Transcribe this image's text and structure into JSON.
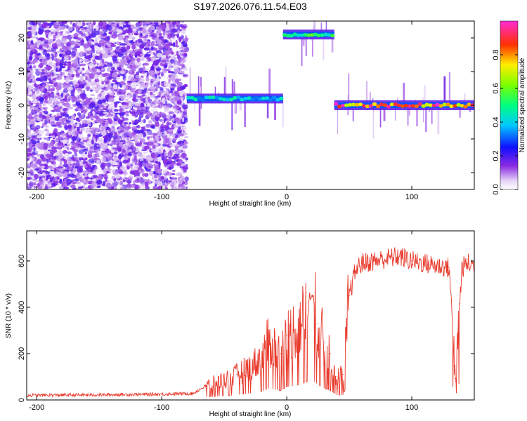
{
  "title": "S197.2026.076.11.54.E03",
  "chart_data": [
    {
      "type": "heatmap",
      "title": "S197.2026.076.11.54.E03",
      "xlabel": "Height of straight line (km)",
      "ylabel": "Frequency (Hz)",
      "xlim": [
        -208,
        150
      ],
      "ylim": [
        -25,
        25
      ],
      "xticks": [
        -200,
        -100,
        0,
        100
      ],
      "yticks": [
        -20,
        -10,
        0,
        10,
        20
      ],
      "xtick_labels": [
        "-200",
        "-100",
        "0",
        "100"
      ],
      "ytick_labels": [
        "-20",
        "-10",
        "0",
        "10",
        "20"
      ],
      "grid": false,
      "colorbar": {
        "label": "Normalized spectral amplitude",
        "range": [
          0,
          1
        ],
        "ticks": [
          0,
          0.2,
          0.4,
          0.6,
          0.8
        ],
        "tick_labels": [
          "0.0",
          "0.2",
          "0.4",
          "0.6",
          "0.8"
        ],
        "colormap": "rainbow (white-purple-blue-cyan-green-yellow-red-magenta)"
      },
      "regions": [
        {
          "x_range": [
            -208,
            -80
          ],
          "kind": "broadband noise",
          "amplitude": 0.1
        },
        {
          "x_range": [
            -80,
            -3
          ],
          "kind": "tone",
          "frequency_hz": 2,
          "amplitude": 0.45
        },
        {
          "x_range": [
            -3,
            38
          ],
          "kind": "tone",
          "frequency_hz": 21,
          "amplitude": 0.6
        },
        {
          "x_range": [
            38,
            150
          ],
          "kind": "tone",
          "frequency_hz": 0,
          "amplitude": 0.95
        }
      ]
    },
    {
      "type": "line",
      "xlabel": "Height of straight line (km)",
      "ylabel": "SNR (10 * v/v)",
      "xlim": [
        -208,
        150
      ],
      "ylim": [
        0,
        730
      ],
      "xticks": [
        -200,
        -100,
        0,
        100
      ],
      "yticks": [
        0,
        200,
        400,
        600
      ],
      "xtick_labels": [
        "-200",
        "-100",
        "0",
        "100"
      ],
      "ytick_labels": [
        "0",
        "200",
        "400",
        "600"
      ],
      "grid": false,
      "series": [
        {
          "name": "SNR",
          "color": "#e8392b",
          "x": [
            -208,
            -150,
            -100,
            -75,
            -65,
            -55,
            -45,
            -40,
            -30,
            -20,
            -15,
            -10,
            -5,
            0,
            5,
            10,
            15,
            20,
            25,
            30,
            35,
            40,
            45,
            50,
            55,
            60,
            70,
            80,
            90,
            100,
            110,
            120,
            130,
            135,
            140,
            145,
            150
          ],
          "values": [
            20,
            22,
            25,
            28,
            60,
            80,
            95,
            110,
            140,
            180,
            250,
            230,
            200,
            280,
            300,
            320,
            380,
            450,
            330,
            250,
            200,
            100,
            110,
            450,
            560,
            590,
            600,
            610,
            620,
            600,
            590,
            580,
            570,
            80,
            570,
            590,
            580
          ]
        }
      ]
    }
  ]
}
